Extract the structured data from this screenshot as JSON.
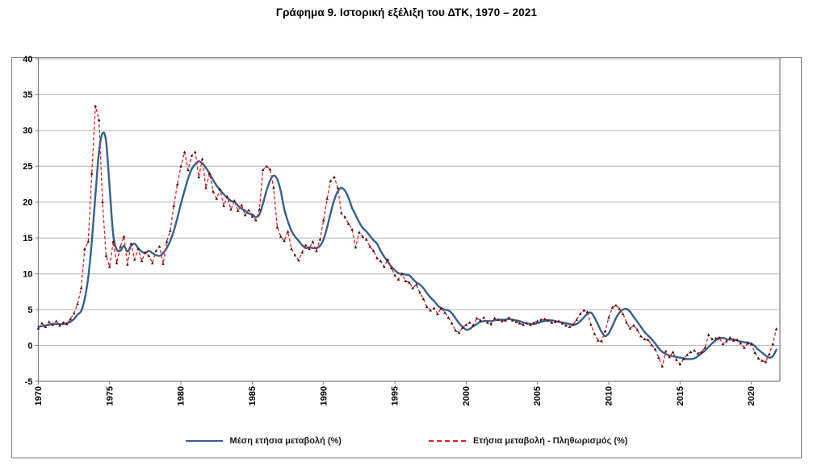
{
  "title": "Γράφημα 9. Ιστορική εξέλιξη του ΔΤΚ, 1970 – 2021",
  "legend": {
    "mean_annual": {
      "label": "Μέση ετήσια μεταβολή (%)"
    },
    "yoy": {
      "label": "Ετήσια μεταβολή - Πληθωρισμός (%)"
    }
  },
  "colors": {
    "mean_annual_line": "#35608D",
    "yoy_line": "#D92323",
    "yoy_marker": "#47100E",
    "grid": "#B3B3B3",
    "axis": "#7F7F7F",
    "frame": "#808080",
    "text": "#000000",
    "background": "#FFFFFF"
  },
  "chart_data": {
    "type": "line",
    "title": "Γράφημα 9. Ιστορική εξέλιξη του ΔΤΚ, 1970 – 2021",
    "xlabel": "",
    "ylabel": "",
    "xlim": [
      1970,
      2022
    ],
    "ylim": [
      -5,
      40
    ],
    "grid": "horizontal",
    "legend_position": "bottom",
    "x_ticks": [
      1970,
      1975,
      1980,
      1985,
      1990,
      1995,
      2000,
      2005,
      2010,
      2015,
      2020
    ],
    "y_ticks": [
      40,
      35,
      30,
      25,
      20,
      15,
      10,
      5,
      0,
      -5
    ],
    "x_start": 1970,
    "x_step": 0.25,
    "series": [
      {
        "name": "Μέση ετήσια μεταβολή (%)",
        "style": "solid-smooth",
        "color": "#35608D",
        "values": [
          2.6,
          2.7,
          2.8,
          2.9,
          3.0,
          3.0,
          3.0,
          3.0,
          3.1,
          3.3,
          3.7,
          4.3,
          4.8,
          6.5,
          9.5,
          14.5,
          21.0,
          27.0,
          29.6,
          28.5,
          22.0,
          15.5,
          13.4,
          13.2,
          13.9,
          13.1,
          13.9,
          14.2,
          13.6,
          13.1,
          12.9,
          13.2,
          12.9,
          12.6,
          12.5,
          12.9,
          13.6,
          14.6,
          16.0,
          17.8,
          19.8,
          21.6,
          23.3,
          24.6,
          25.3,
          25.7,
          25.4,
          24.8,
          24.0,
          23.1,
          22.3,
          21.7,
          21.1,
          20.6,
          20.2,
          20.0,
          19.5,
          19.1,
          18.8,
          18.4,
          18.3,
          17.9,
          18.3,
          19.8,
          21.6,
          23.0,
          23.7,
          23.2,
          21.5,
          19.0,
          17.3,
          16.0,
          15.2,
          14.6,
          14.0,
          13.6,
          13.7,
          13.6,
          13.6,
          13.9,
          14.8,
          16.5,
          18.5,
          20.3,
          21.5,
          22.0,
          21.6,
          20.6,
          19.2,
          18.2,
          17.2,
          16.4,
          15.9,
          15.3,
          14.7,
          14.2,
          13.2,
          12.4,
          11.7,
          11.0,
          10.5,
          10.1,
          10.0,
          9.9,
          9.8,
          9.3,
          8.8,
          8.5,
          8.0,
          7.3,
          6.7,
          6.2,
          5.6,
          5.2,
          5.0,
          4.9,
          4.5,
          3.8,
          3.1,
          2.6,
          2.2,
          2.3,
          2.7,
          3.0,
          3.3,
          3.4,
          3.4,
          3.4,
          3.5,
          3.6,
          3.6,
          3.6,
          3.7,
          3.6,
          3.5,
          3.4,
          3.2,
          3.1,
          3.0,
          3.0,
          3.1,
          3.3,
          3.4,
          3.5,
          3.5,
          3.4,
          3.3,
          3.2,
          3.1,
          3.0,
          2.9,
          3.0,
          3.4,
          3.9,
          4.4,
          4.6,
          3.9,
          2.9,
          1.9,
          1.3,
          1.7,
          2.7,
          3.8,
          4.6,
          5.0,
          5.1,
          4.7,
          4.0,
          3.3,
          2.6,
          1.9,
          1.4,
          0.9,
          0.3,
          -0.4,
          -0.9,
          -1.2,
          -1.4,
          -1.5,
          -1.6,
          -1.7,
          -1.8,
          -1.9,
          -1.9,
          -1.8,
          -1.5,
          -1.1,
          -0.7,
          -0.2,
          0.3,
          0.7,
          1.0,
          1.05,
          0.9,
          0.8,
          0.85,
          0.7,
          0.55,
          0.45,
          0.4,
          0.25,
          -0.1,
          -0.6,
          -1.0,
          -1.4,
          -1.7,
          -1.5,
          -0.6
        ]
      },
      {
        "name": "Ετήσια μεταβολή - Πληθωρισμός (%)",
        "style": "dashed-markers",
        "color": "#D92323",
        "marker_color": "#47100E",
        "values": [
          2.4,
          3.1,
          2.6,
          3.3,
          2.9,
          3.4,
          2.8,
          3.2,
          3.0,
          3.7,
          4.5,
          5.8,
          8.0,
          13.5,
          14.5,
          24.0,
          33.4,
          31.5,
          20.0,
          12.5,
          11.0,
          14.5,
          11.5,
          13.8,
          15.2,
          11.3,
          14.2,
          12.0,
          13.5,
          11.8,
          13.0,
          12.5,
          11.5,
          13.2,
          13.8,
          11.4,
          14.5,
          16.0,
          19.5,
          22.5,
          25.0,
          27.0,
          24.5,
          26.5,
          27.0,
          23.5,
          26.0,
          22.0,
          24.0,
          21.5,
          20.5,
          21.8,
          19.5,
          20.8,
          19.0,
          20.2,
          18.8,
          19.6,
          18.2,
          18.9,
          18.0,
          17.5,
          19.0,
          24.5,
          25.0,
          24.6,
          22.0,
          16.5,
          15.2,
          14.6,
          15.9,
          13.5,
          12.6,
          11.9,
          13.0,
          14.0,
          13.5,
          14.5,
          13.2,
          14.8,
          17.5,
          20.5,
          23.0,
          23.5,
          22.0,
          18.5,
          17.9,
          17.0,
          16.2,
          13.7,
          15.8,
          15.2,
          14.8,
          13.8,
          13.2,
          12.2,
          11.8,
          11.0,
          12.0,
          10.8,
          9.8,
          9.2,
          10.0,
          9.0,
          8.8,
          8.0,
          8.5,
          7.4,
          6.5,
          5.4,
          4.9,
          5.2,
          4.4,
          5.2,
          4.6,
          3.9,
          3.1,
          2.1,
          1.8,
          2.5,
          2.9,
          3.2,
          2.8,
          3.8,
          3.5,
          3.9,
          3.2,
          3.0,
          3.8,
          3.6,
          3.4,
          3.5,
          3.9,
          3.5,
          3.3,
          3.1,
          2.9,
          3.1,
          2.9,
          3.2,
          3.4,
          3.6,
          3.7,
          3.5,
          3.2,
          3.3,
          3.4,
          3.1,
          2.8,
          2.6,
          2.9,
          3.6,
          4.4,
          4.9,
          4.7,
          2.9,
          1.6,
          0.7,
          0.6,
          2.0,
          3.9,
          5.3,
          5.6,
          5.1,
          4.4,
          3.2,
          2.4,
          2.8,
          2.2,
          1.3,
          0.9,
          0.8,
          0.1,
          -0.5,
          -1.7,
          -2.9,
          -0.8,
          -1.6,
          -0.9,
          -2.0,
          -2.6,
          -1.9,
          -1.3,
          -0.9,
          -0.7,
          -1.1,
          -0.9,
          -0.3,
          1.5,
          0.9,
          1.0,
          1.1,
          0.2,
          0.6,
          1.1,
          0.7,
          0.8,
          0.3,
          -0.3,
          0.3,
          0.2,
          -1.0,
          -1.8,
          -2.1,
          -2.3,
          -1.2,
          0.2,
          2.3
        ]
      }
    ]
  }
}
